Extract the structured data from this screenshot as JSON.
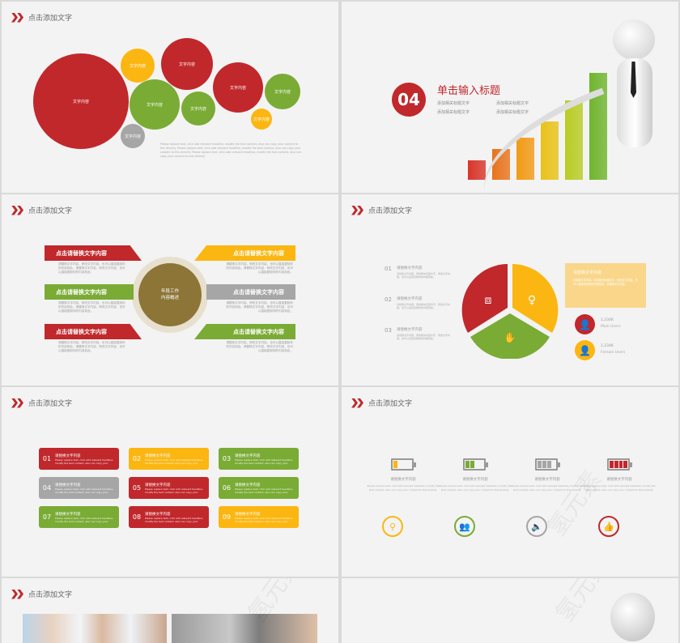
{
  "colors": {
    "red": "#c0282c",
    "yellow": "#fbb612",
    "green": "#7aab35",
    "gray": "#a6a6a6",
    "olive": "#8c7536"
  },
  "header_text": "点击添加文字",
  "watermark": "氢元素",
  "slide1": {
    "bubble_label": "文字内容",
    "paragraph": "Please replace text, click add relevant headline, modify the text content, also can copy your content to this directly. Please replace text, click add relevant headline, modify the text content, also can copy your content to this directly. Please replace text, click add relevant headline, modify the text content, also can copy your content to this directly."
  },
  "slide2": {
    "number": "04",
    "title": "单击输入标题",
    "bullets": [
      "添加相关标题文字",
      "添加相关标题文字",
      "添加相关标题文字",
      "添加相关标题文字"
    ]
  },
  "slide3": {
    "center": "年段工作\n内容概述",
    "banner_label": "点击请替换文字内容",
    "body": "请替换文字内容，修改文字内容，也可以直接复制你的内容到此。请替换文字内容，修改文字内容，也可以直接复制你的内容到此。"
  },
  "slide4": {
    "items": [
      {
        "num": "01",
        "title": "请替换文字内容"
      },
      {
        "num": "02",
        "title": "请替换文字内容"
      },
      {
        "num": "03",
        "title": "请替换文字内容"
      }
    ],
    "item_body": "请替换文字内容，添加相关标题文字，修改文字内容，也可以直接复制你的内容到此。",
    "box_title": "请替换文字内容",
    "box_body": "请替换文字内容，添加相关标题文字，修改文字内容，也可以直接复制你的内容到此。请替换文字内容。",
    "stats": [
      {
        "value": "1,234K",
        "label": "Male Users"
      },
      {
        "value": "1,234K",
        "label": "Female Users"
      }
    ]
  },
  "slide5": {
    "title": "请替换文字内容",
    "desc": "Please replace text, click add relevant headline, modify the text content, also can copy your content to this directly.",
    "boxes": [
      "01",
      "02",
      "03",
      "04",
      "05",
      "06",
      "07",
      "08",
      "09"
    ]
  },
  "slide6": {
    "label": "请替换文字内容",
    "desc": "Please replace text, click add relevant headline, modify the text content, also can copy your content to this directly.",
    "battery_levels": [
      0.25,
      0.5,
      0.75,
      1
    ],
    "icons": [
      "search-icon",
      "users-icon",
      "speaker-icon",
      "thumbs-up-icon"
    ]
  }
}
